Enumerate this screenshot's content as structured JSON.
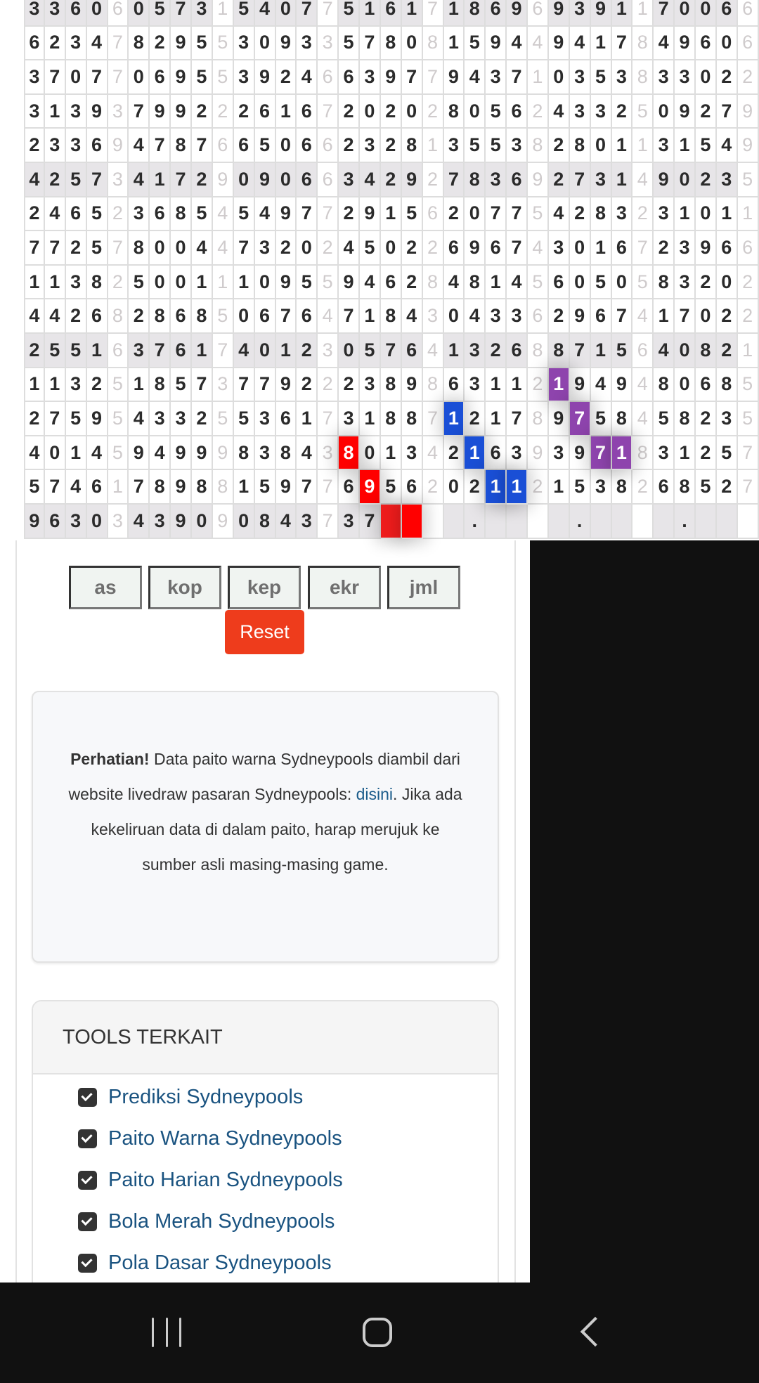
{
  "grid": {
    "rows": [
      "33606057315407751617186969391170066",
      "62347829553093357808159449417849606",
      "37077069553924663977943710353833022",
      "31393799222616720202805624332509279",
      "23369478766506623281355382801131549",
      "42573417290906634292783692731490235",
      "24652368545497729156207754283231011",
      "77257800447320245022696743016723966",
      "11382500111095594628481456050583202",
      "44268286850676471843043362967417022",
      "25516376174012305764132688715640821",
      "11325185737792223898631121949480685",
      "27595433255361731887121789758458235",
      "40145949998384380134216393971831257",
      "57461789881597769562021121538268527",
      "96303439090843737    .    .    .    ."
    ],
    "shaded_rows": [
      0,
      5,
      10,
      15
    ],
    "highlights": [
      {
        "row": 13,
        "col": 15,
        "color": "#ff0000"
      },
      {
        "row": 14,
        "col": 16,
        "color": "#ff0000"
      },
      {
        "row": 15,
        "col": 17,
        "color": "#ee1c1c"
      },
      {
        "row": 15,
        "col": 18,
        "color": "#ff0000"
      },
      {
        "row": 12,
        "col": 20,
        "color": "#1a4fd6"
      },
      {
        "row": 13,
        "col": 21,
        "color": "#1a4fd6"
      },
      {
        "row": 14,
        "col": 22,
        "color": "#1a4fd6"
      },
      {
        "row": 14,
        "col": 23,
        "color": "#1a4fd6"
      },
      {
        "row": 11,
        "col": 25,
        "color": "#8e44ad"
      },
      {
        "row": 12,
        "col": 26,
        "color": "#8e44ad"
      },
      {
        "row": 13,
        "col": 27,
        "color": "#8e44ad"
      },
      {
        "row": 13,
        "col": 28,
        "color": "#8e44ad"
      }
    ]
  },
  "filters": {
    "buttons": [
      "as",
      "kop",
      "kep",
      "ekr",
      "jml"
    ],
    "reset_label": "Reset",
    "reset_color": "#ee3c1c"
  },
  "notice": {
    "bold": "Perhatian!",
    "text1": " Data paito warna Sydneypools diambil dari website livedraw pasaran Sydneypools: ",
    "link": "disini",
    "text2": ". Jika ada kekeliruan data di dalam paito, harap merujuk ke sumber asli masing-masing game."
  },
  "tools": {
    "title": "TOOLS TERKAIT",
    "items": [
      {
        "label": "Prediksi Sydneypools",
        "icon": "check-square-icon"
      },
      {
        "label": "Paito Warna Sydneypools",
        "icon": "check-square-icon"
      },
      {
        "label": "Paito Harian Sydneypools",
        "icon": "check-square-icon"
      },
      {
        "label": "Bola Merah Sydneypools",
        "icon": "check-square-icon"
      },
      {
        "label": "Pola Dasar Sydneypools",
        "icon": "check-square-icon"
      }
    ]
  },
  "navbar": {
    "icons": [
      "recent-apps-icon",
      "home-icon",
      "back-icon"
    ]
  }
}
